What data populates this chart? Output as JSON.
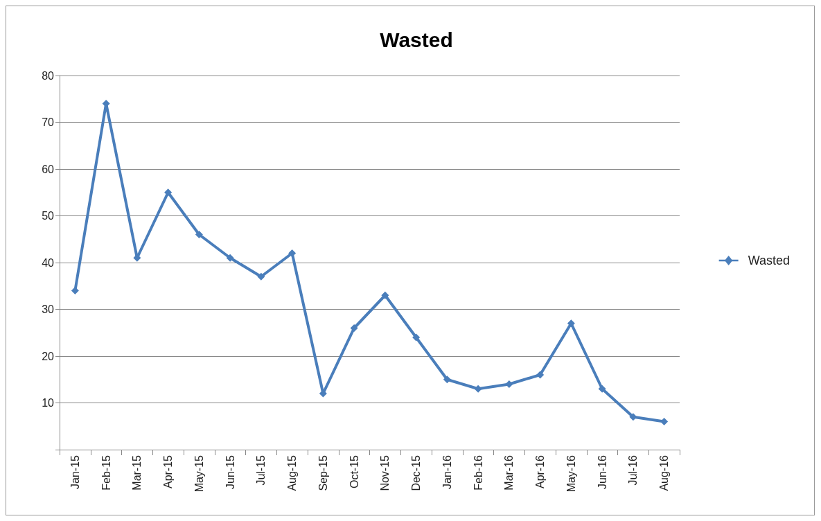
{
  "chart_data": {
    "type": "line",
    "title": "Wasted",
    "categories": [
      "Jan-15",
      "Feb-15",
      "Mar-15",
      "Apr-15",
      "May-15",
      "Jun-15",
      "Jul-15",
      "Aug-15",
      "Sep-15",
      "Oct-15",
      "Nov-15",
      "Dec-15",
      "Jan-16",
      "Feb-16",
      "Mar-16",
      "Apr-16",
      "May-16",
      "Jun-16",
      "Jul-16",
      "Aug-16"
    ],
    "series": [
      {
        "name": "Wasted",
        "color": "#4a7ebb",
        "values": [
          34,
          74,
          41,
          55,
          46,
          41,
          37,
          42,
          12,
          26,
          33,
          24,
          15,
          13,
          14,
          16,
          27,
          13,
          7,
          6
        ]
      }
    ],
    "ylim": [
      0,
      80
    ],
    "yticks": [
      {
        "value": 0,
        "label": null
      },
      10,
      20,
      30,
      40,
      50,
      60,
      70,
      80
    ],
    "grid": "y",
    "legend": "right",
    "marker": "diamond",
    "line_style": "solid"
  }
}
